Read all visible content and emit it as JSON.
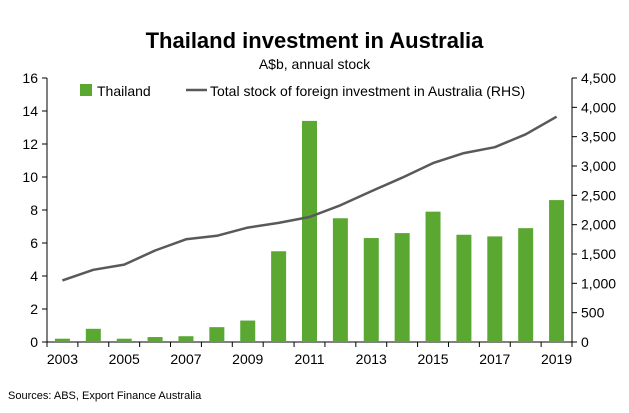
{
  "colors": {
    "bar": "#5aa832",
    "line": "#595959",
    "axis": "#000000"
  },
  "chart_data": {
    "type": "bar",
    "title": "Thailand investment in Australia",
    "subtitle": "A$b, annual stock",
    "source": "Sources: ABS, Export Finance Australia",
    "x": [
      2003,
      2004,
      2005,
      2006,
      2007,
      2008,
      2009,
      2010,
      2011,
      2012,
      2013,
      2014,
      2015,
      2016,
      2017,
      2018,
      2019
    ],
    "x_tick_labels": [
      "2003",
      "2005",
      "2007",
      "2009",
      "2011",
      "2013",
      "2015",
      "2017",
      "2019"
    ],
    "y_left": {
      "lim": [
        0,
        16
      ],
      "ticks": [
        "0",
        "2",
        "4",
        "6",
        "8",
        "10",
        "12",
        "14",
        "16"
      ]
    },
    "y_right": {
      "lim": [
        0,
        4500
      ],
      "ticks": [
        "0",
        "500",
        "1,000",
        "1,500",
        "2,000",
        "2,500",
        "3,000",
        "3,500",
        "4,000",
        "4,500"
      ]
    },
    "legend_position": "top",
    "series": [
      {
        "name": "Thailand",
        "type": "bar",
        "axis": "left",
        "values": [
          0.2,
          0.8,
          0.2,
          0.3,
          0.35,
          0.9,
          1.3,
          5.5,
          13.4,
          7.5,
          6.3,
          6.6,
          7.9,
          6.5,
          6.4,
          6.9,
          8.6
        ]
      },
      {
        "name": "Total stock of foreign investment in Australia (RHS)",
        "type": "line",
        "axis": "right",
        "values": [
          1050,
          1230,
          1320,
          1560,
          1750,
          1810,
          1950,
          2030,
          2130,
          2330,
          2570,
          2800,
          3050,
          3220,
          3320,
          3540,
          3840
        ]
      }
    ]
  }
}
